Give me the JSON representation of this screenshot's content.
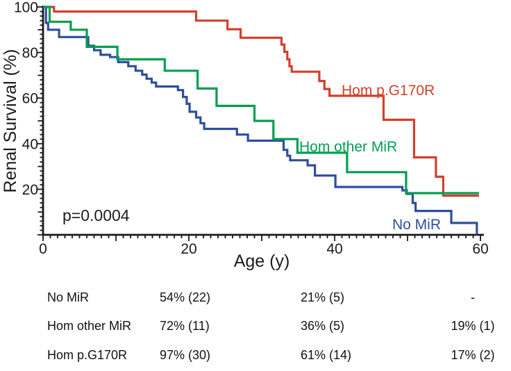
{
  "chart": {
    "y_axis_label": "Renal Survival (%)",
    "x_axis_label": "Age (y)",
    "p_value": "p=0.0004"
  },
  "chart_data": {
    "type": "line",
    "subtype": "kaplan-meier-step-survival",
    "title": "",
    "xlabel": "Age (y)",
    "ylabel": "Renal Survival (%)",
    "xlim": [
      0,
      60
    ],
    "ylim": [
      0,
      100
    ],
    "x_ticks": [
      0,
      20,
      40,
      60
    ],
    "y_ticks": [
      20,
      40,
      60,
      80,
      100
    ],
    "grid": false,
    "legend_position": "inline-labels",
    "annotations": [
      {
        "text": "p=0.0004",
        "x": 3,
        "y": 10
      }
    ],
    "series": [
      {
        "name": "Hom p.G170R",
        "color": "#d2402c",
        "points": [
          [
            0,
            100
          ],
          [
            1.5,
            98
          ],
          [
            21,
            94
          ],
          [
            25.3,
            90.2
          ],
          [
            27.1,
            86.5
          ],
          [
            32.7,
            83.5
          ],
          [
            33.1,
            80.3
          ],
          [
            33.5,
            77
          ],
          [
            33.8,
            74
          ],
          [
            34.1,
            71.6
          ],
          [
            37.9,
            67.5
          ],
          [
            38.6,
            64
          ],
          [
            39.3,
            61
          ],
          [
            46.7,
            50.5
          ],
          [
            50.9,
            34
          ],
          [
            53.9,
            25.5
          ],
          [
            54.9,
            17.2
          ]
        ],
        "end_age": 59.8
      },
      {
        "name": "No MiR",
        "color": "#2e4f9e",
        "points": [
          [
            0,
            100
          ],
          [
            0.4,
            93
          ],
          [
            0.7,
            90
          ],
          [
            2.2,
            86.8
          ],
          [
            6.2,
            83
          ],
          [
            7,
            81
          ],
          [
            7.9,
            79
          ],
          [
            9.2,
            78
          ],
          [
            10.3,
            75.8
          ],
          [
            11.7,
            74
          ],
          [
            12.7,
            72
          ],
          [
            13.6,
            70.3
          ],
          [
            14.2,
            68.5
          ],
          [
            14.9,
            66.8
          ],
          [
            15.5,
            65.1
          ],
          [
            18.5,
            63.5
          ],
          [
            19.2,
            60.5
          ],
          [
            19.7,
            57.5
          ],
          [
            20.1,
            54
          ],
          [
            21,
            51.5
          ],
          [
            21.6,
            49
          ],
          [
            22.1,
            46.5
          ],
          [
            26.6,
            44
          ],
          [
            28.1,
            41.3
          ],
          [
            33,
            37.3
          ],
          [
            33.5,
            34.7
          ],
          [
            33.9,
            32.7
          ],
          [
            36.3,
            30.5
          ],
          [
            37.3,
            26
          ],
          [
            40.1,
            21
          ],
          [
            49.3,
            19.5
          ],
          [
            49.9,
            18
          ],
          [
            50.7,
            14
          ],
          [
            51.1,
            10.5
          ],
          [
            56,
            5.2
          ],
          [
            59.5,
            0.3
          ]
        ],
        "end_age": 59.55
      },
      {
        "name": "Hom other MiR",
        "color": "#009f50",
        "points": [
          [
            0,
            100
          ],
          [
            0.9,
            93.5
          ],
          [
            3.8,
            90
          ],
          [
            6,
            82.5
          ],
          [
            10.2,
            77
          ],
          [
            16.7,
            72
          ],
          [
            21.2,
            64.2
          ],
          [
            23.8,
            56.6
          ],
          [
            29,
            50
          ],
          [
            31.6,
            42
          ],
          [
            34.9,
            36
          ],
          [
            41.7,
            27.5
          ],
          [
            49.8,
            18.3
          ]
        ],
        "end_age": 59.8
      }
    ]
  },
  "table": {
    "rows": [
      {
        "label": "No MiR",
        "col1": "54% (22)",
        "col2": "21% (5)",
        "col3": "-"
      },
      {
        "label": "Hom other MiR",
        "col1": "72% (11)",
        "col2": "36% (5)",
        "col3": "19% (1)"
      },
      {
        "label": "Hom p.G170R",
        "col1": "97% (30)",
        "col2": "61% (14)",
        "col3": "17% (2)"
      }
    ]
  }
}
